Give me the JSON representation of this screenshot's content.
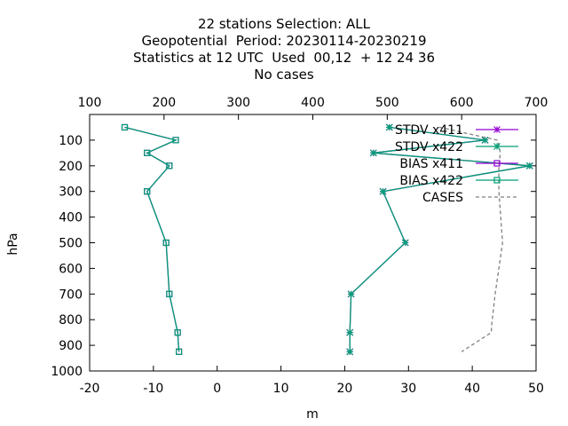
{
  "title_lines": [
    "22 stations Selection: ALL",
    "Geopotential  Period: 20230114-20230219",
    "Statistics at 12 UTC  Used  00,12  + 12 24 36",
    "No cases"
  ],
  "chart_data": {
    "type": "line",
    "xlabel": "m",
    "ylabel": "hPa",
    "x_range": [
      -20,
      50
    ],
    "y_range": [
      1000,
      0
    ],
    "x_ticks": [
      -20,
      -10,
      0,
      10,
      20,
      30,
      40,
      50
    ],
    "y_ticks": [
      100,
      200,
      300,
      400,
      500,
      600,
      700,
      800,
      900,
      1000
    ],
    "x2_label": "",
    "x2_range": [
      100,
      700
    ],
    "x2_ticks": [
      100,
      200,
      300,
      400,
      500,
      600,
      700
    ],
    "grid": false,
    "legend_position": "top-right",
    "series": [
      {
        "name": "STDV x411",
        "color": "#9400d3",
        "marker": "star",
        "axis": "x1",
        "points": [
          [
            27,
            50
          ],
          [
            42,
            100
          ],
          [
            24.5,
            150
          ],
          [
            49,
            200
          ],
          [
            26,
            300
          ],
          [
            29.5,
            500
          ],
          [
            21,
            700
          ],
          [
            20.8,
            850
          ],
          [
            20.8,
            925
          ]
        ]
      },
      {
        "name": "STDV x422",
        "color": "#009e73",
        "marker": "star",
        "axis": "x1",
        "points": [
          [
            27,
            50
          ],
          [
            42,
            100
          ],
          [
            24.5,
            150
          ],
          [
            49,
            200
          ],
          [
            26,
            300
          ],
          [
            29.5,
            500
          ],
          [
            21,
            700
          ],
          [
            20.8,
            850
          ],
          [
            20.8,
            925
          ]
        ]
      },
      {
        "name": "BIAS x411",
        "color": "#9400d3",
        "marker": "square",
        "axis": "x1",
        "points": [
          [
            -14.5,
            50
          ],
          [
            -6.5,
            100
          ],
          [
            -11,
            150
          ],
          [
            -7.5,
            200
          ],
          [
            -11,
            300
          ],
          [
            -8,
            500
          ],
          [
            -7.5,
            700
          ],
          [
            -6.2,
            850
          ],
          [
            -6,
            925
          ]
        ]
      },
      {
        "name": "BIAS x422",
        "color": "#009e73",
        "marker": "square",
        "axis": "x1",
        "points": [
          [
            -14.5,
            50
          ],
          [
            -6.5,
            100
          ],
          [
            -11,
            150
          ],
          [
            -7.5,
            200
          ],
          [
            -11,
            300
          ],
          [
            -8,
            500
          ],
          [
            -7.5,
            700
          ],
          [
            -6.2,
            850
          ],
          [
            -6,
            925
          ]
        ]
      },
      {
        "name": "CASES",
        "color": "#808080",
        "marker": "none",
        "dashed": true,
        "axis": "x2",
        "points": [
          [
            570,
            50
          ],
          [
            648,
            100
          ],
          [
            652,
            150
          ],
          [
            650,
            200
          ],
          [
            650,
            300
          ],
          [
            655,
            500
          ],
          [
            645,
            700
          ],
          [
            640,
            830
          ],
          [
            640,
            850
          ],
          [
            600,
            925
          ]
        ]
      }
    ]
  }
}
